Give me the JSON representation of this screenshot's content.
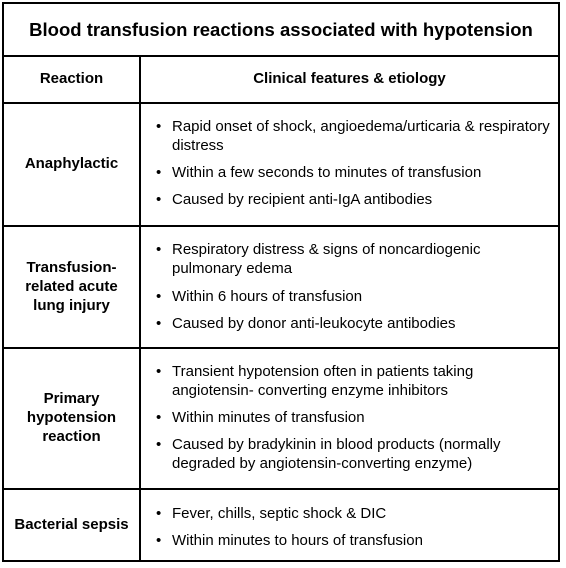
{
  "title": "Blood transfusion reactions associated with hypotension",
  "headers": {
    "reaction": "Reaction",
    "features": "Clinical features & etiology"
  },
  "bullet": "•",
  "rows": [
    {
      "reaction": "Anaphylactic",
      "features": [
        "Rapid onset of shock, angioedema/urticaria & respiratory distress",
        "Within a few seconds to minutes of transfusion",
        "Caused by recipient anti-IgA antibodies"
      ]
    },
    {
      "reaction": "Transfusion-related acute lung injury",
      "features": [
        "Respiratory distress & signs of noncardiogenic pulmonary edema",
        "Within 6 hours of transfusion",
        "Caused by donor anti-leukocyte antibodies"
      ]
    },
    {
      "reaction": "Primary hypotension reaction",
      "features": [
        "Transient hypotension often in patients taking angiotensin- converting enzyme inhibitors",
        "Within minutes of transfusion",
        "Caused by bradykinin in blood products (normally degraded by angiotensin-converting enzyme)"
      ]
    },
    {
      "reaction": "Bacterial sepsis",
      "features": [
        "Fever, chills, septic shock & DIC",
        "Within minutes to hours of transfusion"
      ]
    }
  ]
}
